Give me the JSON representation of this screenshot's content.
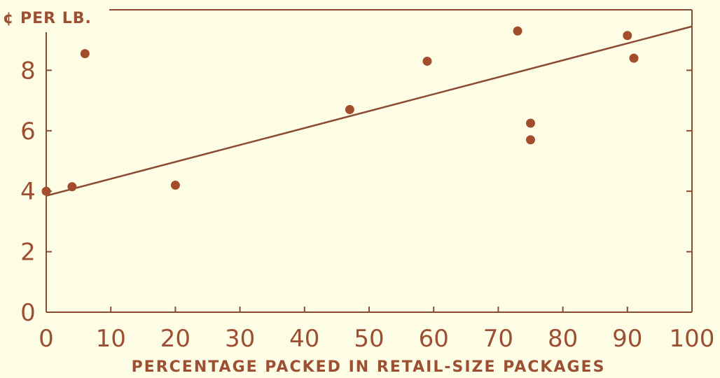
{
  "chart_data": {
    "type": "scatter",
    "ylabel": "¢ PER LB.",
    "xlabel": "PERCENTAGE PACKED IN RETAIL-SIZE PACKAGES",
    "xlim": [
      0,
      100
    ],
    "ylim": [
      0,
      10
    ],
    "xticks": [
      0,
      10,
      20,
      30,
      40,
      50,
      60,
      70,
      80,
      90,
      100
    ],
    "yticks": [
      0,
      2,
      4,
      6,
      8
    ],
    "points": [
      {
        "x": 0,
        "y": 4.0
      },
      {
        "x": 4,
        "y": 4.15
      },
      {
        "x": 6,
        "y": 8.55
      },
      {
        "x": 20,
        "y": 4.2
      },
      {
        "x": 47,
        "y": 6.7
      },
      {
        "x": 59,
        "y": 8.3
      },
      {
        "x": 73,
        "y": 9.3
      },
      {
        "x": 75,
        "y": 6.25
      },
      {
        "x": 75,
        "y": 5.7
      },
      {
        "x": 90,
        "y": 9.15
      },
      {
        "x": 91,
        "y": 8.4
      }
    ],
    "trend_line": {
      "x": [
        0,
        100
      ],
      "y": [
        3.85,
        9.45
      ]
    },
    "grid": false,
    "legend": "none"
  },
  "colors": {
    "background": "#fdfde6",
    "ink": "#9c4f33",
    "point": "#a34d2c"
  }
}
